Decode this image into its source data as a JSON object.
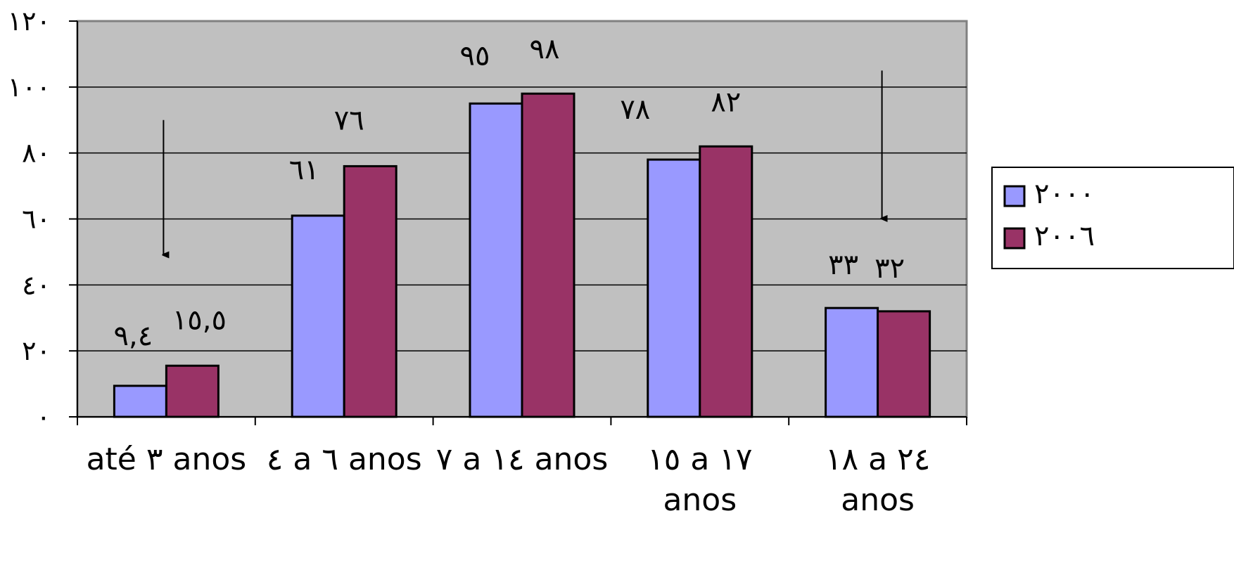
{
  "chart_data": {
    "type": "bar",
    "categories": [
      [
        "até ٣ anos"
      ],
      [
        "٤ a ٦ anos"
      ],
      [
        "٧ a ١٤ anos"
      ],
      [
        "١٥ a ١٧",
        "anos"
      ],
      [
        "١٨ a ٢٤",
        "anos"
      ]
    ],
    "series": [
      {
        "name": "٢٠٠٠",
        "color": "#9999FF",
        "values": [
          9.4,
          61,
          95,
          78,
          33
        ],
        "labels": [
          "٩,٤",
          "٦١",
          "٩٥",
          "٧٨",
          "٣٣"
        ]
      },
      {
        "name": "٢٠٠٦",
        "color": "#993366",
        "values": [
          15.5,
          76,
          98,
          82,
          32
        ],
        "labels": [
          "١٥,٥",
          "٧٦",
          "٩٨",
          "٨٢",
          "٣٢"
        ]
      }
    ],
    "ylim": [
      0,
      120
    ],
    "yticks": [
      0,
      20,
      40,
      60,
      80,
      100,
      120
    ],
    "ytick_labels": [
      "٠",
      "٢٠",
      "٤٠",
      "٦٠",
      "٨٠",
      "١٠٠",
      "١٢٠"
    ],
    "plot_background": "#C0C0C0",
    "grid": true,
    "legend": "right",
    "annotations": [
      {
        "type": "arrow-down",
        "category_index": 0,
        "from": 90,
        "to": 47
      },
      {
        "type": "arrow-down",
        "category_index": 4,
        "from": 105,
        "to": 58
      }
    ]
  }
}
